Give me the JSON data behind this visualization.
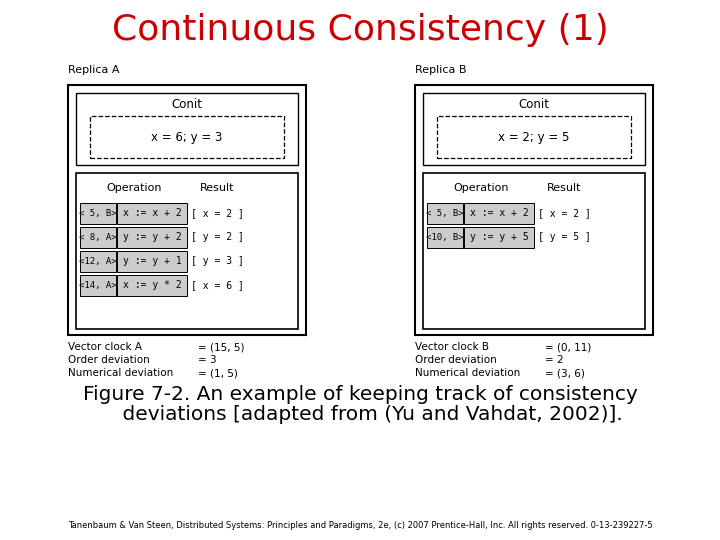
{
  "title": "Continuous Consistency (1)",
  "title_color": "#cc0000",
  "title_fontsize": 26,
  "fig_caption_line1": "Figure 7-2. An example of keeping track of consistency",
  "fig_caption_line2": "    deviations [adapted from (Yu and Vahdat, 2002)].",
  "caption_fontsize": 14.5,
  "footer": "Tanenbaum & Van Steen, Distributed Systems: Principles and Paradigms, 2e, (c) 2007 Prentice-Hall, Inc. All rights reserved. 0-13-239227-5",
  "footer_fontsize": 6.0,
  "replica_a_label": "Replica A",
  "replica_b_label": "Replica B",
  "conit_label": "Conit",
  "conit_a_value": "x = 6; y = 3",
  "conit_b_value": "x = 2; y = 5",
  "op_label": "Operation",
  "result_label": "Result",
  "ops_a": [
    {
      "op1": "< 5, B>",
      "op2": "x := x + 2",
      "res": "[ x = 2 ]"
    },
    {
      "op1": "< 8, A>",
      "op2": "y := y + 2",
      "res": "[ y = 2 ]"
    },
    {
      "op1": "<12, A>",
      "op2": "y := y + 1",
      "res": "[ y = 3 ]"
    },
    {
      "op1": "<14, A>",
      "op2": "x := y * 2",
      "res": "[ x = 6 ]"
    }
  ],
  "ops_b": [
    {
      "op1": "< 5, B>",
      "op2": "x := x + 2",
      "res": "[ x = 2 ]"
    },
    {
      "op1": "<10, B>",
      "op2": "y := y + 5",
      "res": "[ y = 5 ]"
    }
  ],
  "stats_a": [
    [
      "Vector clock A",
      "= (15, 5)"
    ],
    [
      "Order deviation",
      "= 3"
    ],
    [
      "Numerical deviation",
      "= (1, 5)"
    ]
  ],
  "stats_b": [
    [
      "Vector clock B",
      "= (0, 11)"
    ],
    [
      "Order deviation",
      "= 2"
    ],
    [
      "Numerical deviation",
      "= (3, 6)"
    ]
  ],
  "background_color": "#ffffff",
  "shaded_cell_color": "#cccccc",
  "label_fontsize": 8.0,
  "conit_fontsize": 8.5,
  "op_header_fontsize": 8.0,
  "row_fontsize": 7.0,
  "stats_fontsize": 7.5
}
